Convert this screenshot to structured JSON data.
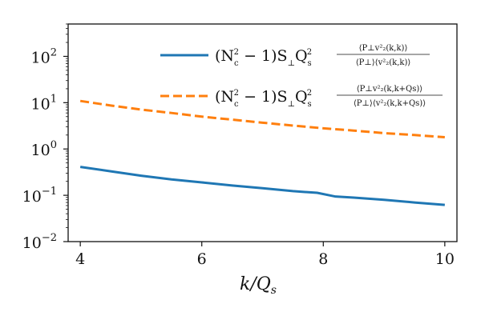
{
  "chart_data": {
    "type": "line",
    "xlabel": "k/Q",
    "xlabel_sub": "s",
    "ylabel": "",
    "title": "",
    "xlim": [
      3.8,
      10.2
    ],
    "ylim": [
      0.01,
      500
    ],
    "yscale": "log",
    "x_ticks": [
      4,
      6,
      8,
      10
    ],
    "x_tick_labels": [
      "4",
      "6",
      "8",
      "10"
    ],
    "y_ticks": [
      0.01,
      0.1,
      1,
      10,
      100
    ],
    "y_tick_labels": [
      {
        "base": "10",
        "exp": "−2"
      },
      {
        "base": "10",
        "exp": "−1"
      },
      {
        "base": "10",
        "exp": "0"
      },
      {
        "base": "10",
        "exp": "1"
      },
      {
        "base": "10",
        "exp": "2"
      }
    ],
    "grid": false,
    "legend_position": "top-right",
    "series": [
      {
        "name": "(N_c^2 − 1) S_⊥ Q_s^2 ⟨P_⊥ v_2^2(k,k)⟩ / (⟨P_⊥⟩⟨v_2^2(k,k)⟩)",
        "color": "#1f77b4",
        "style": "solid",
        "x": [
          4.0,
          4.5,
          5.0,
          5.5,
          6.0,
          6.5,
          7.0,
          7.5,
          7.9,
          8.2,
          8.5,
          9.0,
          9.5,
          10.0
        ],
        "y": [
          0.41,
          0.33,
          0.265,
          0.22,
          0.19,
          0.163,
          0.142,
          0.123,
          0.113,
          0.094,
          0.089,
          0.08,
          0.07,
          0.062
        ]
      },
      {
        "name": "(N_c^2 − 1) S_⊥ Q_s^2 ⟨P_⊥ v_2^2(k,k+Q_s)⟩ / (⟨P_⊥⟩⟨v_2^2(k,k+Q_s)⟩)",
        "color": "#ff7f0e",
        "style": "dashed",
        "x": [
          4.0,
          4.5,
          5.0,
          5.5,
          6.0,
          6.5,
          7.0,
          7.5,
          8.0,
          8.5,
          9.0,
          9.5,
          10.0
        ],
        "y": [
          10.9,
          8.7,
          7.1,
          6.0,
          5.0,
          4.3,
          3.7,
          3.2,
          2.8,
          2.5,
          2.2,
          2.0,
          1.8
        ]
      }
    ]
  },
  "legend": {
    "entries": [
      {
        "prefix": "(N",
        "sub_c": "c",
        "sup_2": "2",
        "mid": " − 1)S",
        "sub_perp": "⊥",
        "q": "Q",
        "sub_s": "s",
        "sup_q": "2",
        "num": "⟨P⊥v²₂(k,k)⟩",
        "den": "⟨P⊥⟩⟨v²₂(k,k)⟩"
      },
      {
        "prefix": "(N",
        "sub_c": "c",
        "sup_2": "2",
        "mid": " − 1)S",
        "sub_perp": "⊥",
        "q": "Q",
        "sub_s": "s",
        "sup_q": "2",
        "num": "⟨P⊥v²₂(k,k+Qs)⟩",
        "den": "⟨P⊥⟩⟨v²₂(k,k+Qs)⟩"
      }
    ]
  }
}
